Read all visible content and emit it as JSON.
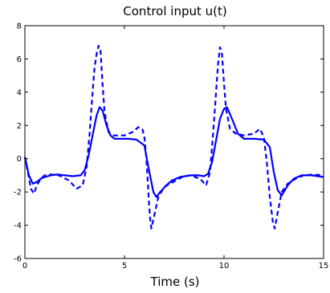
{
  "chart_data": {
    "type": "line",
    "title": "Control input u(t)",
    "xlabel": "Time (s)",
    "ylabel": "",
    "xlim": [
      0,
      15
    ],
    "ylim": [
      -6,
      8
    ],
    "xticks": [
      "0",
      "5",
      "10",
      "15"
    ],
    "yticks": [
      "8",
      "6",
      "4",
      "2",
      "0",
      "-2",
      "-4",
      "-6"
    ],
    "grid": false,
    "legend": "none",
    "series": [
      {
        "style": "solid",
        "color": "#0000ff",
        "x": [
          0,
          0.2,
          0.4,
          0.6,
          0.8,
          1.0,
          1.3,
          1.6,
          2.0,
          2.4,
          2.8,
          3.0,
          3.2,
          3.4,
          3.6,
          3.75,
          3.9,
          4.1,
          4.3,
          4.5,
          4.8,
          5.2,
          5.6,
          6.0,
          6.2,
          6.45,
          6.6,
          6.8,
          7.1,
          7.4,
          7.8,
          8.3,
          8.7,
          9.0,
          9.2,
          9.4,
          9.6,
          9.8,
          10.0,
          10.15,
          10.4,
          10.7,
          11.0,
          11.5,
          12.0,
          12.3,
          12.5,
          12.7,
          12.9,
          13.2,
          13.5,
          13.9,
          14.4,
          15.0
        ],
        "y": [
          0.1,
          -1.0,
          -1.5,
          -1.4,
          -1.2,
          -1.1,
          -1.0,
          -0.95,
          -1.0,
          -1.05,
          -1.0,
          -0.7,
          0.2,
          1.4,
          2.6,
          3.1,
          2.9,
          2.0,
          1.4,
          1.2,
          1.2,
          1.2,
          1.15,
          0.8,
          -0.5,
          -2.0,
          -2.3,
          -2.0,
          -1.6,
          -1.3,
          -1.1,
          -1.0,
          -1.0,
          -1.05,
          -0.9,
          -0.2,
          1.1,
          2.4,
          3.0,
          3.1,
          2.4,
          1.5,
          1.2,
          1.2,
          1.15,
          0.7,
          -0.8,
          -1.9,
          -2.2,
          -1.6,
          -1.2,
          -1.0,
          -1.0,
          -1.1
        ]
      },
      {
        "style": "dashed",
        "color": "#0000ff",
        "x": [
          0,
          0.15,
          0.3,
          0.45,
          0.6,
          0.8,
          1.0,
          1.3,
          1.7,
          2.2,
          2.6,
          2.9,
          3.1,
          3.25,
          3.4,
          3.5,
          3.6,
          3.7,
          3.8,
          3.9,
          4.0,
          4.2,
          4.4,
          4.7,
          5.0,
          5.4,
          5.7,
          5.9,
          6.0,
          6.1,
          6.2,
          6.28,
          6.35,
          6.5,
          6.7,
          7.0,
          7.3,
          7.6,
          7.9,
          8.3,
          8.8,
          9.1,
          9.3,
          9.45,
          9.6,
          9.7,
          9.8,
          9.9,
          10.0,
          10.1,
          10.3,
          10.6,
          11.0,
          11.5,
          11.8,
          12.0,
          12.15,
          12.3,
          12.45,
          12.55,
          12.7,
          12.9,
          13.2,
          13.6,
          14.0,
          14.5,
          15.0
        ],
        "y": [
          0.1,
          -0.8,
          -1.8,
          -2.1,
          -1.6,
          -1.2,
          -1.0,
          -0.95,
          -1.0,
          -1.3,
          -1.8,
          -1.6,
          -0.5,
          1.5,
          4.0,
          5.5,
          6.3,
          6.8,
          6.5,
          4.5,
          2.8,
          1.6,
          1.4,
          1.4,
          1.4,
          1.6,
          1.9,
          1.8,
          1.3,
          0.0,
          -2.0,
          -3.5,
          -4.2,
          -3.4,
          -2.3,
          -1.7,
          -1.5,
          -1.3,
          -1.1,
          -1.0,
          -1.2,
          -1.6,
          -0.8,
          1.5,
          4.0,
          5.7,
          6.7,
          6.3,
          4.5,
          3.0,
          1.8,
          1.5,
          1.4,
          1.5,
          1.8,
          1.3,
          -0.2,
          -2.3,
          -3.8,
          -4.2,
          -3.2,
          -2.0,
          -1.5,
          -1.2,
          -1.0,
          -0.95,
          -1.0
        ]
      }
    ]
  }
}
